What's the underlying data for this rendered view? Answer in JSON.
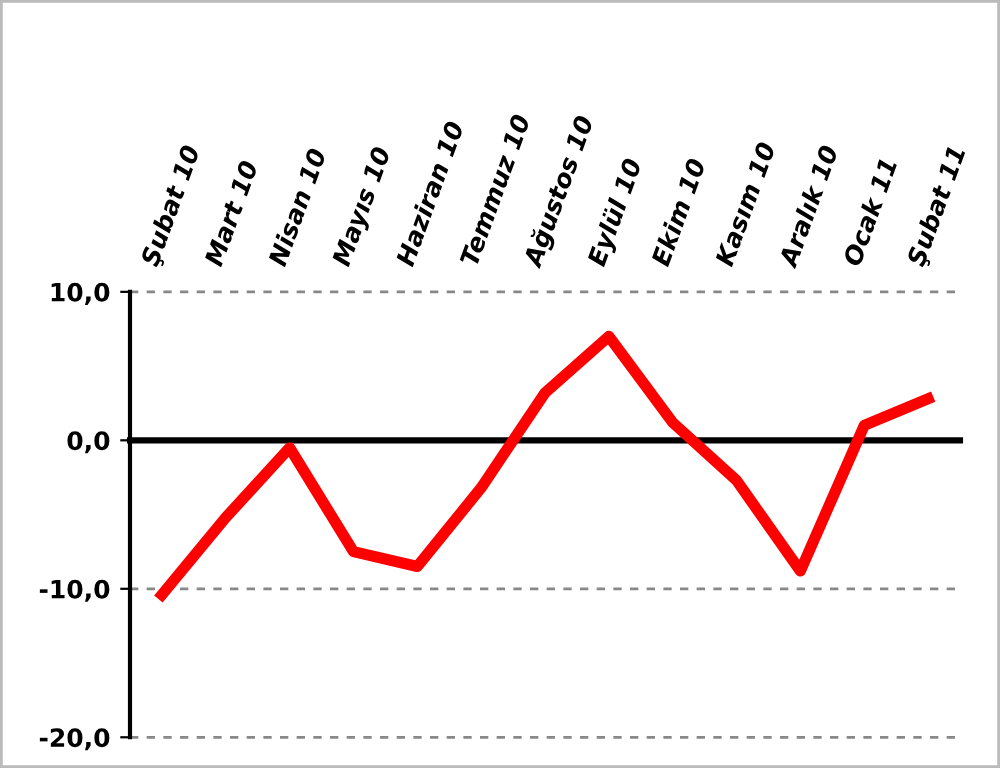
{
  "chart_data": {
    "type": "line",
    "categories": [
      "Şubat 10",
      "Mart 10",
      "Nisan 10",
      "Mayıs 10",
      "Haziran 10",
      "Temmuz 10",
      "Ağustos 10",
      "Eylül 10",
      "Ekim 10",
      "Kasım 10",
      "Aralık 10",
      "Ocak 11",
      "Şubat 11"
    ],
    "series": [
      {
        "color": "#ff0000",
        "values": [
          -10.4,
          -5.2,
          -0.5,
          -7.5,
          -8.5,
          -3.2,
          3.2,
          7.0,
          1.2,
          -2.7,
          -8.8,
          1.0,
          2.8
        ]
      }
    ],
    "ylim": [
      -20,
      10
    ],
    "yticks": [
      {
        "value": -20,
        "label": "-20,0"
      },
      {
        "value": -10,
        "label": "-10,0"
      },
      {
        "value": 0,
        "label": "0,0"
      },
      {
        "value": 10,
        "label": "10,0"
      }
    ],
    "marker": "none",
    "line_style": "solid",
    "ref_lines": [
      {
        "axis": "y",
        "value": 0,
        "color": "#000000",
        "line_style": "solid"
      },
      {
        "axis": "y",
        "value": 10,
        "color": "#888888",
        "line_style": "dashed"
      },
      {
        "axis": "y",
        "value": -10,
        "color": "#888888",
        "line_style": "dashed"
      },
      {
        "axis": "y",
        "value": -20,
        "color": "#888888",
        "line_style": "dashed"
      }
    ]
  }
}
